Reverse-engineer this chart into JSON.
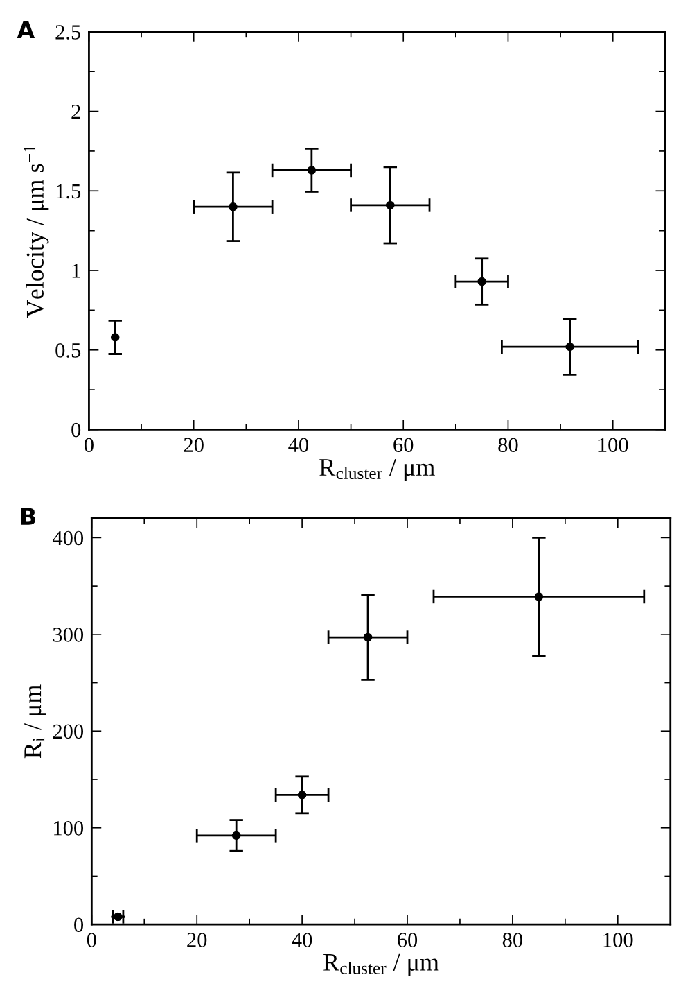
{
  "chart_data": [
    {
      "type": "scatter",
      "title": "A",
      "xlabel": "R$_{cluster}$ / μm",
      "ylabel": "Velocity / μm s$^{−1}$",
      "marker": "circle",
      "x": [
        5,
        27.5,
        42.5,
        57.5,
        75,
        91.8
      ],
      "series": [
        {
          "color": "#000000",
          "values": [
            0.58,
            1.4,
            1.63,
            1.41,
            0.93,
            0.52
          ],
          "errors": [
            0.105,
            0.215,
            0.135,
            0.24,
            0.145,
            0.175
          ],
          "xerrors": [
            null,
            7.5,
            7.5,
            7.5,
            5,
            13
          ]
        }
      ],
      "xlim": [
        0,
        110
      ],
      "ylim": [
        0,
        2.5
      ],
      "xticks": [
        0,
        {
          "value": 10,
          "label": null
        },
        20,
        {
          "value": 30,
          "label": null
        },
        40,
        {
          "value": 50,
          "label": null
        },
        60,
        {
          "value": 70,
          "label": null
        },
        80,
        {
          "value": 90,
          "label": null
        },
        100
      ],
      "yticks": [
        0,
        {
          "value": 0.25,
          "label": null
        },
        0.5,
        {
          "value": 0.75,
          "label": null
        },
        1,
        {
          "value": 1.25,
          "label": null
        },
        1.5,
        {
          "value": 1.75,
          "label": null
        },
        2,
        {
          "value": 2.25,
          "label": null
        },
        2.5
      ]
    },
    {
      "type": "scatter",
      "title": "B",
      "xlabel": "R$_{cluster}$ / μm",
      "ylabel": "R$_{i}$ / μm",
      "marker": "circle",
      "x": [
        5,
        27.5,
        40,
        52.5,
        85
      ],
      "series": [
        {
          "color": "#000000",
          "values": [
            8,
            92,
            134,
            297,
            339
          ],
          "errors": [
            null,
            16,
            19,
            44,
            61
          ],
          "xerrors": [
            1,
            7.5,
            5,
            7.5,
            20
          ]
        }
      ],
      "xlim": [
        0,
        110
      ],
      "ylim": [
        0,
        420
      ],
      "xticks": [
        0,
        {
          "value": 10,
          "label": null
        },
        20,
        {
          "value": 30,
          "label": null
        },
        40,
        {
          "value": 50,
          "label": null
        },
        60,
        {
          "value": 70,
          "label": null
        },
        80,
        {
          "value": 90,
          "label": null
        },
        100
      ],
      "yticks": [
        0,
        {
          "value": 50,
          "label": null
        },
        100,
        {
          "value": 150,
          "label": null
        },
        200,
        {
          "value": 250,
          "label": null
        },
        300,
        {
          "value": 350,
          "label": null
        },
        400
      ]
    }
  ]
}
